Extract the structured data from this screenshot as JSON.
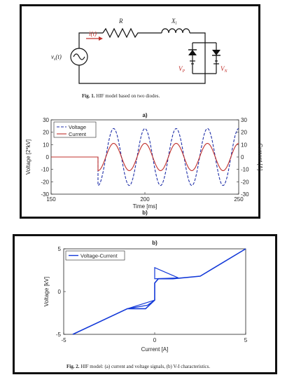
{
  "figure1": {
    "caption_label": "Fig. 1.",
    "caption_text": "HIF model based on two diodes.",
    "labels": {
      "resistor": "R",
      "inductor": "X",
      "inductor_sub": "l",
      "current": "i(t)",
      "source": "v",
      "source_sub": "s",
      "source_arg": "(t)",
      "diode_p": "V",
      "diode_p_sub": "P",
      "diode_n": "V",
      "diode_n_sub": "N"
    }
  },
  "figure2": {
    "caption_label": "Fig. 2.",
    "caption_text": "HIF model: (a) current and voltage signals, (b) V-I characteristics."
  },
  "colors": {
    "voltage": "#1f2fa8",
    "current": "#c0302c",
    "vi": "#1238d8",
    "frame": "#111111"
  },
  "chart_data": [
    {
      "type": "line",
      "panel_label": "a)",
      "xlabel": "Time [ms]",
      "ylabel": "Voltage [2*kV]",
      "y2label": "Current [A]",
      "xlim": [
        150,
        250
      ],
      "ylim": [
        -30,
        30
      ],
      "y2lim": [
        -30,
        30
      ],
      "xticks": [
        "150",
        "200",
        "250"
      ],
      "yticks": [
        "30",
        "20",
        "10",
        "0",
        "-10",
        "-20",
        "-30"
      ],
      "y2ticks": [
        "30",
        "20",
        "10",
        "0",
        "-10",
        "-20",
        "-30"
      ],
      "legend_position": "top-left",
      "fault_start_ms": 175,
      "period_ms": 16.67,
      "series": [
        {
          "name": "Voltage",
          "style": "dashed",
          "amplitude": 23,
          "pre_fault_value": 0
        },
        {
          "name": "Current",
          "style": "solid",
          "amplitude": 11,
          "pre_fault_value": 0
        }
      ],
      "next_panel_label": "b)"
    },
    {
      "type": "line",
      "panel_label": "b)",
      "xlabel": "Current [A]",
      "ylabel": "Voltage [kV]",
      "xlim": [
        -5,
        5
      ],
      "ylim": [
        -5,
        5
      ],
      "xticks": [
        "-5",
        "0",
        "5"
      ],
      "yticks": [
        "5",
        "0",
        "-5"
      ],
      "legend_position": "top-left",
      "series": [
        {
          "name": "Voltage-Current",
          "x": [
            -4.5,
            -1.5,
            -0.5,
            0,
            0,
            0.2,
            1.0,
            2.5,
            5
          ],
          "y": [
            -5,
            -2.0,
            -2.0,
            -1.0,
            1.0,
            1.5,
            1.5,
            1.8,
            5
          ]
        }
      ]
    }
  ]
}
